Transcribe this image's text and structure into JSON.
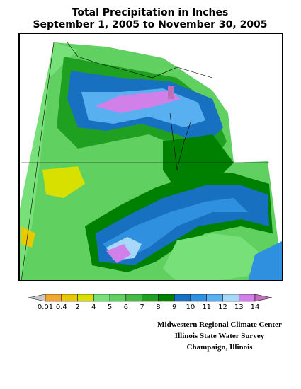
{
  "title": [
    "Total Precipitation in Inches",
    "September 1, 2005 to November 30, 2005"
  ],
  "legend": {
    "labels": [
      0.01,
      0.4,
      2,
      4,
      5,
      6,
      7,
      8,
      9,
      10,
      11,
      12,
      13,
      14
    ],
    "colors": [
      "#c8c8c8",
      "#f0a830",
      "#e8c800",
      "#d8e000",
      "#78e078",
      "#60d060",
      "#48b848",
      "#20a020",
      "#008000",
      "#1870c0",
      "#3090e0",
      "#58b0f0",
      "#a8d8f8",
      "#d080e8",
      "#c070b8"
    ]
  },
  "credits": [
    "Midwestern Regional Climate Center",
    "Illinois State Water Survey",
    "Champaign, Illinois"
  ]
}
